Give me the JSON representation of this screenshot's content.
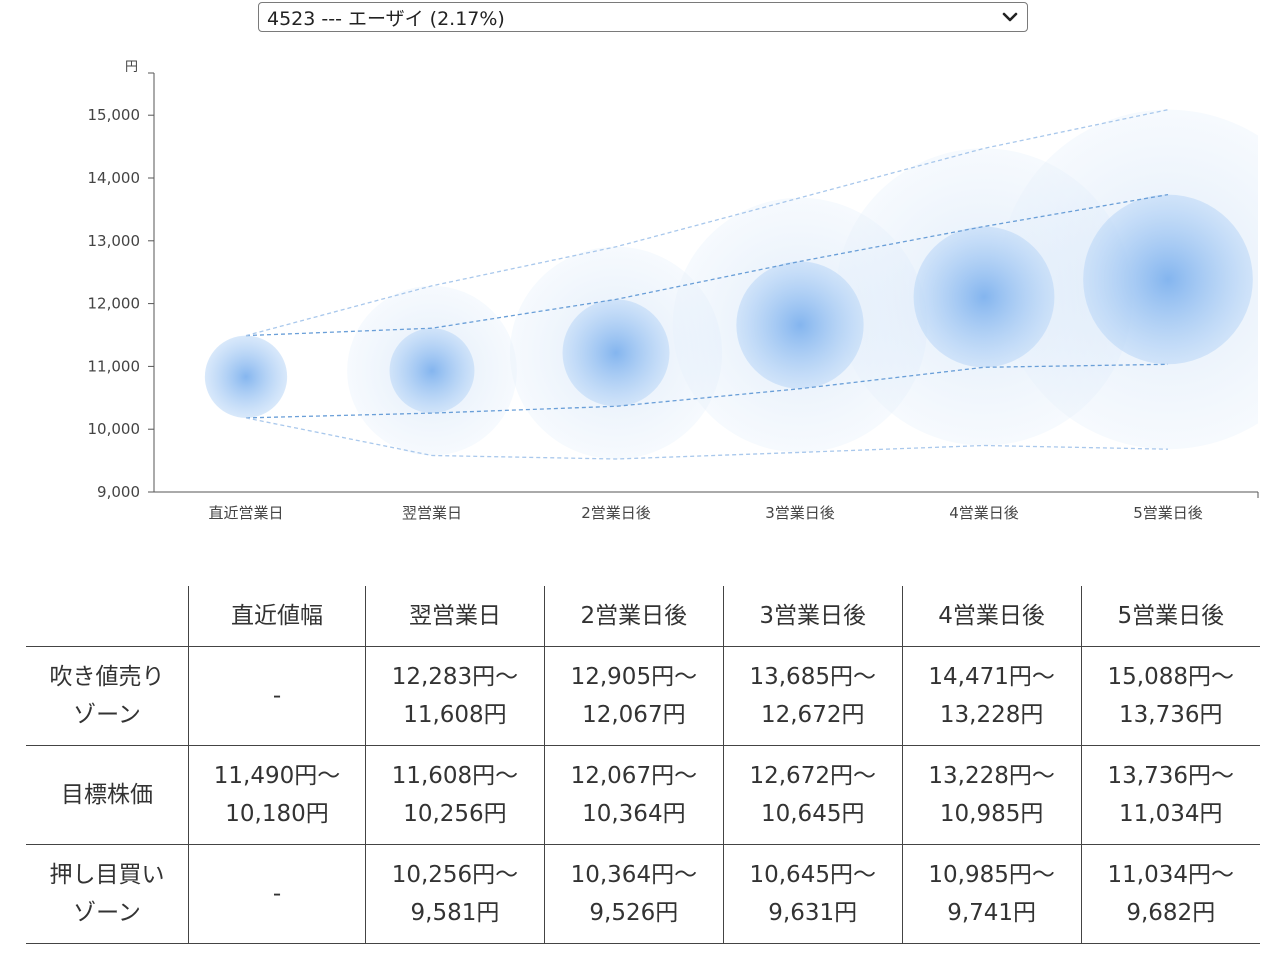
{
  "stock_select": {
    "value": "4523 --- エーザイ (2.17%)"
  },
  "chart_data": {
    "type": "bubble-range",
    "ylabel": "円",
    "ylim": [
      9000,
      15500
    ],
    "yticks": [
      "9,000",
      "10,000",
      "11,000",
      "12,000",
      "13,000",
      "14,000",
      "15,000"
    ],
    "categories": [
      "直近営業日",
      "翌営業日",
      "2営業日後",
      "3営業日後",
      "4営業日後",
      "5営業日後"
    ],
    "target_high": [
      11490,
      11608,
      12067,
      12672,
      13228,
      13736
    ],
    "target_low": [
      10180,
      10256,
      10364,
      10645,
      10985,
      11034
    ],
    "sell_high": [
      null,
      12283,
      12905,
      13685,
      14471,
      15088
    ],
    "buy_low": [
      null,
      9581,
      9526,
      9631,
      9741,
      9682
    ],
    "colors": {
      "bubble": "#7fb2ee",
      "line": "#6a9fd8",
      "axis": "#555555"
    }
  },
  "table": {
    "headers": [
      "",
      "直近値幅",
      "翌営業日",
      "2営業日後",
      "3営業日後",
      "4営業日後",
      "5営業日後"
    ],
    "rows": [
      {
        "label": "吹き値売り\nゾーン",
        "cells": [
          [
            "-"
          ],
          [
            "12,283円〜",
            "11,608円"
          ],
          [
            "12,905円〜",
            "12,067円"
          ],
          [
            "13,685円〜",
            "12,672円"
          ],
          [
            "14,471円〜",
            "13,228円"
          ],
          [
            "15,088円〜",
            "13,736円"
          ]
        ]
      },
      {
        "label": "目標株価",
        "cells": [
          [
            "11,490円〜",
            "10,180円"
          ],
          [
            "11,608円〜",
            "10,256円"
          ],
          [
            "12,067円〜",
            "10,364円"
          ],
          [
            "12,672円〜",
            "10,645円"
          ],
          [
            "13,228円〜",
            "10,985円"
          ],
          [
            "13,736円〜",
            "11,034円"
          ]
        ]
      },
      {
        "label": "押し目買い\nゾーン",
        "cells": [
          [
            "-"
          ],
          [
            "10,256円〜",
            "9,581円"
          ],
          [
            "10,364円〜",
            "9,526円"
          ],
          [
            "10,645円〜",
            "9,631円"
          ],
          [
            "10,985円〜",
            "9,741円"
          ],
          [
            "11,034円〜",
            "9,682円"
          ]
        ]
      }
    ]
  }
}
